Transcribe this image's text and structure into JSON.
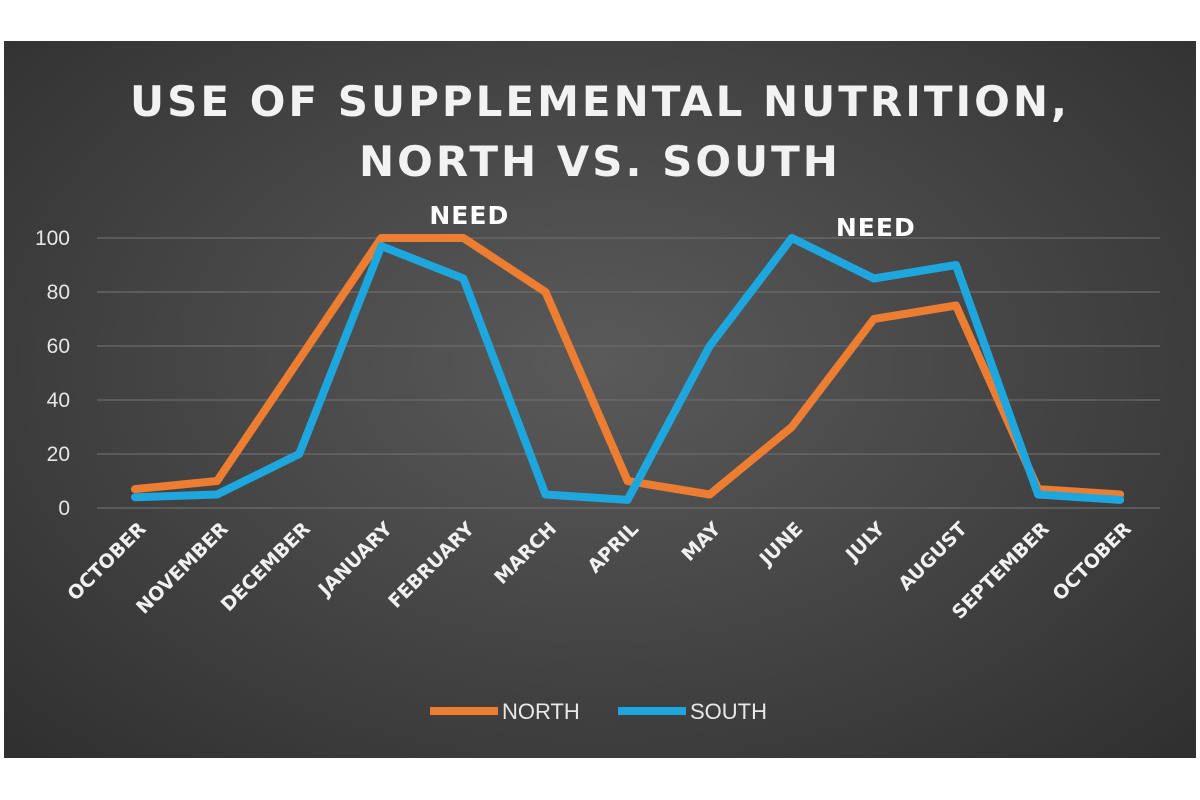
{
  "chart_data": {
    "type": "line",
    "title_lines": [
      "USE OF SUPPLEMENTAL NUTRITION,",
      "NORTH VS. SOUTH"
    ],
    "xlabel": "",
    "ylabel": "",
    "ylim": [
      0,
      100
    ],
    "yticks": [
      0,
      20,
      40,
      60,
      80,
      100
    ],
    "grid": true,
    "legend_position": "bottom",
    "categories": [
      "OCTOBER",
      "NOVEMBER",
      "DECEMBER",
      "JANUARY",
      "FEBRUARY",
      "MARCH",
      "APRIL",
      "MAY",
      "JUNE",
      "JULY",
      "AUGUST",
      "SEPTEMBER",
      "OCTOBER"
    ],
    "series": [
      {
        "name": "NORTH",
        "color": "#ed7d31",
        "values": [
          7,
          10,
          55,
          100,
          100,
          80,
          10,
          5,
          30,
          70,
          75,
          7,
          5
        ]
      },
      {
        "name": "SOUTH",
        "color": "#1ea7de",
        "values": [
          4,
          5,
          20,
          97,
          85,
          5,
          3,
          60,
          100,
          85,
          90,
          5,
          3
        ]
      }
    ],
    "annotations": [
      {
        "text": "NEED",
        "category_index": 3,
        "value": 100
      },
      {
        "text": "NEED",
        "category_index": 8,
        "value": 100
      }
    ]
  },
  "colors": {
    "background_dark": "#3a3a3a",
    "gridline": "#6b6b6b",
    "text": "#f2f2f2"
  }
}
